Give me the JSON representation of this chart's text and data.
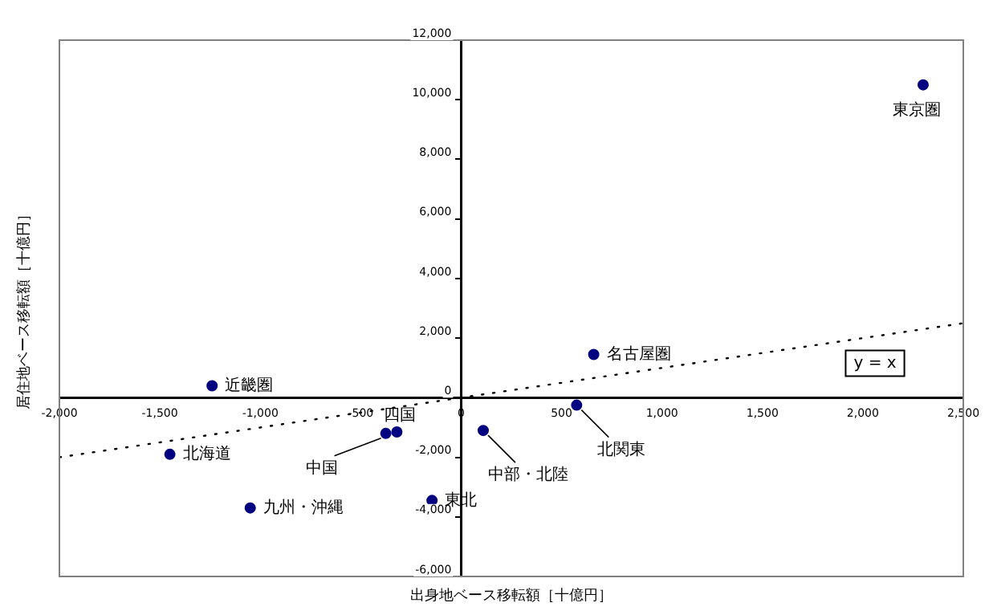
{
  "chart_data": {
    "type": "scatter",
    "xlabel": "出身地ベース移転額［十億円］",
    "ylabel": "居住地ベース移転額［十億円］",
    "xlim": [
      -2000,
      2500
    ],
    "xticks": [
      {
        "value": -2000,
        "label": "-2,000"
      },
      {
        "value": -1500,
        "label": "-1,500"
      },
      {
        "value": -1000,
        "label": "-1,000"
      },
      {
        "value": -500,
        "label": "-500"
      },
      0,
      500,
      {
        "value": 1000,
        "label": "1,000"
      },
      {
        "value": 1500,
        "label": "1,500"
      },
      {
        "value": 2000,
        "label": "2,000"
      },
      {
        "value": 2500,
        "label": "2,500"
      }
    ],
    "ylim": [
      -6000,
      12000
    ],
    "yticks": [
      {
        "value": -6000,
        "label": "-6,000"
      },
      {
        "value": -4000,
        "label": "-4,000"
      },
      {
        "value": -2000,
        "label": "-2,000"
      },
      0,
      {
        "value": 2000,
        "label": "2,000"
      },
      {
        "value": 4000,
        "label": "4,000"
      },
      {
        "value": 6000,
        "label": "6,000"
      },
      {
        "value": 8000,
        "label": "8,000"
      },
      {
        "value": 10000,
        "label": "10,000"
      },
      {
        "value": 12000,
        "label": "12,000"
      }
    ],
    "grid": false,
    "legend": false,
    "series": [
      {
        "color": "#000080",
        "marker": "circle",
        "x": [
          2300,
          660,
          -1240,
          -1450,
          -1050,
          -375,
          -320,
          -145,
          110,
          575
        ],
        "values": [
          10500,
          1450,
          400,
          -1900,
          -3700,
          -1200,
          -1150,
          -3450,
          -1100,
          -250
        ]
      },
      {
        "type": "line",
        "name": "y = x",
        "color": "#000000",
        "line_style": "dotted",
        "marker": "none",
        "x": [
          -2000,
          2500
        ],
        "values": [
          -2000,
          2500
        ]
      }
    ],
    "annotations": [
      {
        "text": "東京圏",
        "x": 2300,
        "y": 10500
      },
      {
        "text": "名古屋圏",
        "x": 660,
        "y": 1450
      },
      {
        "text": "近畿圏",
        "x": -1240,
        "y": 400
      },
      {
        "text": "北海道",
        "x": -1450,
        "y": -1900
      },
      {
        "text": "九州・沖縄",
        "x": -1050,
        "y": -3700
      },
      {
        "text": "中国",
        "x": -375,
        "y": -1200
      },
      {
        "text": "四国",
        "x": -320,
        "y": -1150
      },
      {
        "text": "東北",
        "x": -145,
        "y": -3450
      },
      {
        "text": "中部・北陸",
        "x": 110,
        "y": -1100
      },
      {
        "text": "北関東",
        "x": 575,
        "y": -250
      }
    ]
  }
}
